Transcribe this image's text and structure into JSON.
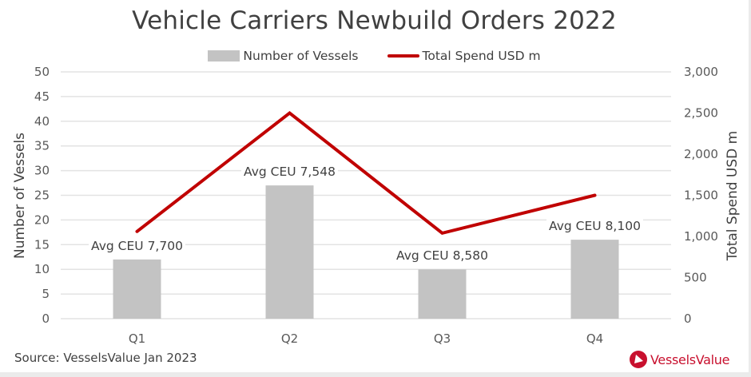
{
  "chart_data": {
    "type": "bar",
    "title": "Vehicle Carriers Newbuild Orders 2022",
    "categories": [
      "Q1",
      "Q2",
      "Q3",
      "Q4"
    ],
    "series": [
      {
        "name": "Number of Vessels",
        "type": "bar",
        "axis": "left",
        "color": "#c3c3c3",
        "values": [
          12,
          27,
          10,
          16
        ]
      },
      {
        "name": "Total Spend USD m",
        "type": "line",
        "axis": "right",
        "color": "#c00000",
        "values": [
          1060,
          2500,
          1040,
          1500
        ]
      }
    ],
    "data_labels": [
      "Avg CEU 7,700",
      "Avg CEU 7,548",
      "Avg CEU 8,580",
      "Avg CEU 8,100"
    ],
    "xlabel": "",
    "ylabel": "Number of Vessels",
    "y2label": "Total Spend USD m",
    "ylim": [
      0,
      50
    ],
    "y2lim": [
      0,
      3000
    ],
    "yticks": [
      "0",
      "5",
      "10",
      "15",
      "20",
      "25",
      "30",
      "35",
      "40",
      "45",
      "50"
    ],
    "y2ticks": [
      "0",
      "500",
      "1,000",
      "1,500",
      "2,000",
      "2,500",
      "3,000"
    ],
    "grid": true,
    "legend": "top-center"
  },
  "footer": {
    "source": "Source: VesselsValue Jan 2023",
    "logo_text": "VesselsValue"
  }
}
